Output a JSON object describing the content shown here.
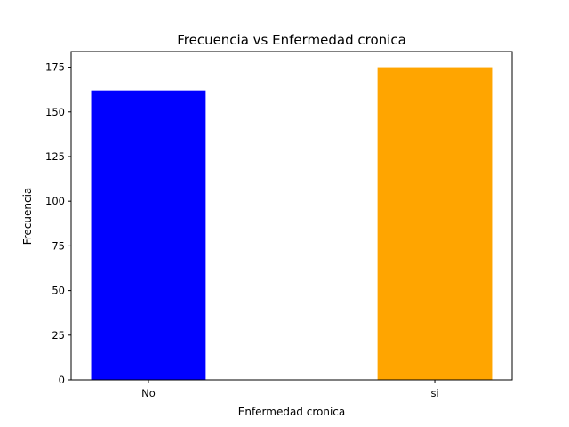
{
  "chart_data": {
    "type": "bar",
    "title": "Frecuencia vs Enfermedad cronica",
    "xlabel": "Enfermedad cronica",
    "ylabel": "Frecuencia",
    "categories": [
      "No",
      "si"
    ],
    "values": [
      162,
      175
    ],
    "bar_colors": [
      "#0000ff",
      "#ffa500"
    ],
    "ylim": [
      0,
      183.75
    ],
    "yticks": [
      0,
      25,
      50,
      75,
      100,
      125,
      150,
      175
    ],
    "grid": false,
    "legend": "none"
  }
}
